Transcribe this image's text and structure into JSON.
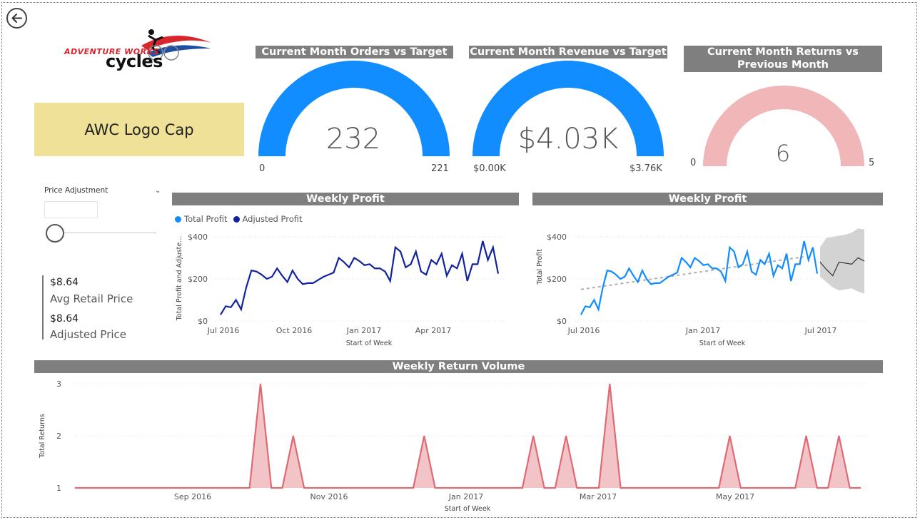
{
  "product": {
    "name": "AWC Logo Cap"
  },
  "logo": {
    "line1": "ADVENTURE WORKS",
    "line2": "cycles"
  },
  "gauges": [
    {
      "title": "Current Month Orders vs Target",
      "value": "232",
      "min": "0",
      "max": "221",
      "fill_fraction": 1.0,
      "color": "#118dff"
    },
    {
      "title": "Current Month Revenue vs Target",
      "value": "$4.03K",
      "min": "$0.00K",
      "max": "$3.76K",
      "fill_fraction": 1.0,
      "color": "#118dff"
    },
    {
      "title": "Current Month Returns vs Previous Month",
      "value": "6",
      "min": "0",
      "max": "5",
      "fill_fraction": 1.0,
      "color": "#f0b6b8"
    }
  ],
  "slicer": {
    "label": "Price Adjustment",
    "value": ""
  },
  "kpis": [
    {
      "value": "$8.64",
      "label": "Avg Retail Price"
    },
    {
      "value": "$8.64",
      "label": "Adjusted Price"
    }
  ],
  "colors": {
    "title_bar": "#7f7f7f",
    "total_profit": "#118dff",
    "adjusted_profit": "#12239e",
    "returns": "#de6a73",
    "returns_fill": "#f2c4c8",
    "forecast": "#333333",
    "forecast_band": "#d3d3d3",
    "trend": "#b0b0b0"
  },
  "chart_data": [
    {
      "type": "line",
      "title": "Weekly Profit",
      "xlabel": "Start of Week",
      "ylabel": "Total Profit and Adjuste...",
      "legend": [
        "Total Profit",
        "Adjusted Profit"
      ],
      "legend_position": "top-left",
      "x_ticks": [
        "Jul 2016",
        "Oct 2016",
        "Jan 2017",
        "Apr 2017"
      ],
      "y_ticks": [
        "$0",
        "$200",
        "$400"
      ],
      "ylim": [
        0,
        400
      ],
      "series": [
        {
          "name": "Adjusted Profit",
          "values": [
            30,
            70,
            65,
            100,
            55,
            160,
            240,
            235,
            220,
            200,
            210,
            250,
            215,
            185,
            240,
            200,
            175,
            180,
            180,
            195,
            210,
            220,
            230,
            300,
            280,
            255,
            300,
            285,
            265,
            270,
            250,
            250,
            235,
            190,
            350,
            330,
            255,
            270,
            330,
            235,
            220,
            290,
            270,
            320,
            215,
            265,
            250,
            320,
            190,
            270,
            270,
            380,
            290,
            350,
            225
          ]
        }
      ]
    },
    {
      "type": "line",
      "title": "Weekly Profit",
      "xlabel": "Start of Week",
      "ylabel": "Total Profit",
      "x_ticks": [
        "Jul 2016",
        "Jan 2017",
        "Jul 2017"
      ],
      "y_ticks": [
        "$0",
        "$200",
        "$400"
      ],
      "ylim": [
        0,
        400
      ],
      "series": [
        {
          "name": "Total Profit",
          "values": [
            30,
            70,
            65,
            100,
            55,
            160,
            240,
            235,
            220,
            200,
            210,
            250,
            215,
            185,
            240,
            200,
            175,
            180,
            180,
            195,
            210,
            220,
            230,
            300,
            280,
            255,
            300,
            285,
            265,
            270,
            250,
            250,
            235,
            190,
            350,
            330,
            255,
            270,
            330,
            235,
            220,
            290,
            270,
            320,
            215,
            265,
            250,
            320,
            190,
            270,
            270,
            380,
            290,
            350,
            225
          ]
        },
        {
          "name": "Forecast",
          "values": [
            280,
            245,
            215,
            280,
            275,
            270,
            300,
            285
          ]
        },
        {
          "name": "Forecast Upper",
          "values": [
            350,
            395,
            400,
            405,
            410,
            420,
            440,
            435
          ]
        },
        {
          "name": "Forecast Lower",
          "values": [
            210,
            185,
            160,
            145,
            150,
            155,
            140,
            130
          ]
        },
        {
          "name": "Trend",
          "values": [
            150,
            305
          ]
        }
      ]
    },
    {
      "type": "area",
      "title": "Weekly Return Volume",
      "xlabel": "Start of Week",
      "ylabel": "Total Returns",
      "x_ticks": [
        "Sep 2016",
        "Nov 2016",
        "Jan 2017",
        "Mar 2017",
        "May 2017"
      ],
      "y_ticks": [
        "1",
        "2",
        "3"
      ],
      "ylim": [
        1,
        3
      ],
      "values": [
        1,
        1,
        1,
        1,
        1,
        1,
        1,
        1,
        1,
        1,
        1,
        1,
        1,
        1,
        1,
        1,
        1,
        3,
        1,
        1,
        2,
        1,
        1,
        1,
        1,
        1,
        1,
        1,
        1,
        1,
        1,
        1,
        2,
        1,
        1,
        1,
        1,
        1,
        1,
        1,
        1,
        1,
        2,
        1,
        1,
        2,
        1,
        1,
        1,
        3,
        1,
        1,
        1,
        1,
        1,
        1,
        1,
        1,
        1,
        1,
        2,
        1,
        1,
        1,
        1,
        1,
        1,
        2,
        1,
        1,
        2,
        1,
        1
      ]
    }
  ]
}
